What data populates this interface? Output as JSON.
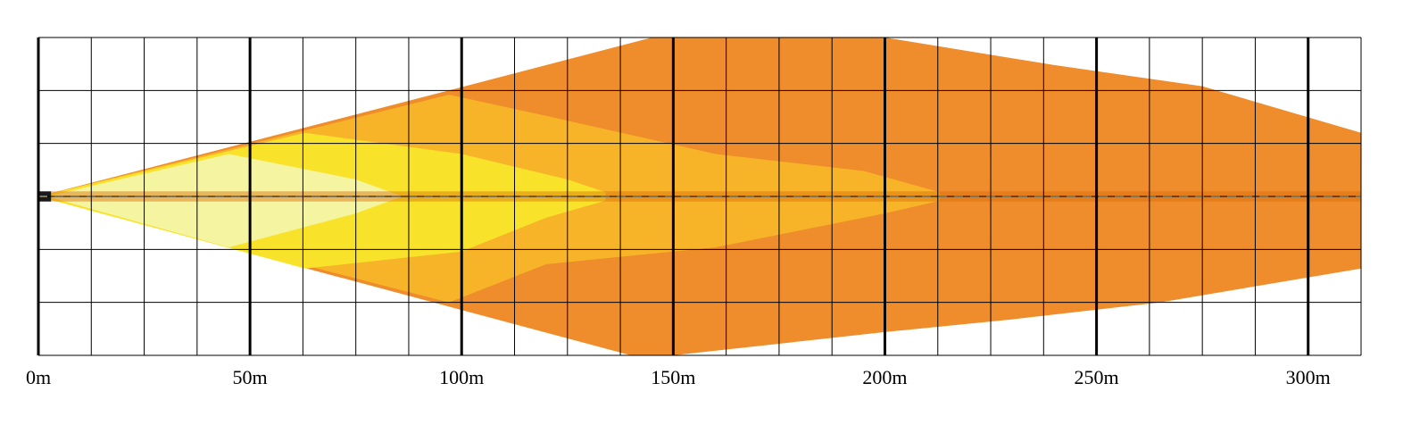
{
  "colors": {
    "background": "#ffffff",
    "grid": "#000000",
    "zone_outer": "#ef8c2b",
    "zone_mid": "#f8b428",
    "zone_inner": "#f8e32a",
    "zone_near": "#f5f4a0",
    "center_band": "#d96a0c",
    "center_band_near": "#1a1a1a",
    "center_line": "#fcebb4"
  },
  "x_axis": {
    "unit": "m",
    "range": [
      0,
      312.5
    ],
    "minor_step": 12.5,
    "major_step": 50,
    "tick_labels": [
      "0m",
      "50m",
      "100m",
      "150m",
      "200m",
      "250m",
      "300m"
    ]
  },
  "y_axis": {
    "minor_step": 12.5,
    "range": [
      -37.5,
      37.5
    ]
  },
  "beam_zones": [
    {
      "name": "outer",
      "color_key": "zone_outer",
      "upper": [
        [
          0,
          0
        ],
        [
          97,
          25
        ],
        [
          145,
          37.5
        ],
        [
          200,
          37.5
        ],
        [
          240,
          31
        ],
        [
          275,
          26
        ],
        [
          312.5,
          15
        ]
      ],
      "lower": [
        [
          312.5,
          -17
        ],
        [
          265,
          -25
        ],
        [
          230,
          -29
        ],
        [
          200,
          -32
        ],
        [
          150,
          -37.5
        ],
        [
          140,
          -37.5
        ],
        [
          97,
          -26
        ],
        [
          0,
          0
        ]
      ]
    },
    {
      "name": "mid",
      "color_key": "zone_mid",
      "upper": [
        [
          0,
          0
        ],
        [
          97,
          24
        ],
        [
          120,
          19
        ],
        [
          160,
          10
        ],
        [
          195,
          6
        ],
        [
          213,
          1
        ]
      ],
      "lower": [
        [
          213,
          -1
        ],
        [
          200,
          -4
        ],
        [
          160,
          -12
        ],
        [
          120,
          -16
        ],
        [
          97,
          -25
        ],
        [
          0,
          0
        ]
      ]
    },
    {
      "name": "inner",
      "color_key": "zone_inner",
      "upper": [
        [
          0,
          0
        ],
        [
          63,
          15
        ],
        [
          100,
          10
        ],
        [
          125,
          4
        ],
        [
          134,
          1
        ]
      ],
      "lower": [
        [
          134,
          -1
        ],
        [
          120,
          -5
        ],
        [
          100,
          -13
        ],
        [
          63,
          -17
        ],
        [
          0,
          0
        ]
      ]
    },
    {
      "name": "near",
      "color_key": "zone_near",
      "upper": [
        [
          2,
          0
        ],
        [
          45,
          10
        ],
        [
          75,
          4
        ],
        [
          86,
          0
        ]
      ],
      "lower": [
        [
          86,
          0
        ],
        [
          75,
          -4
        ],
        [
          45,
          -12
        ],
        [
          2,
          0
        ]
      ]
    }
  ]
}
